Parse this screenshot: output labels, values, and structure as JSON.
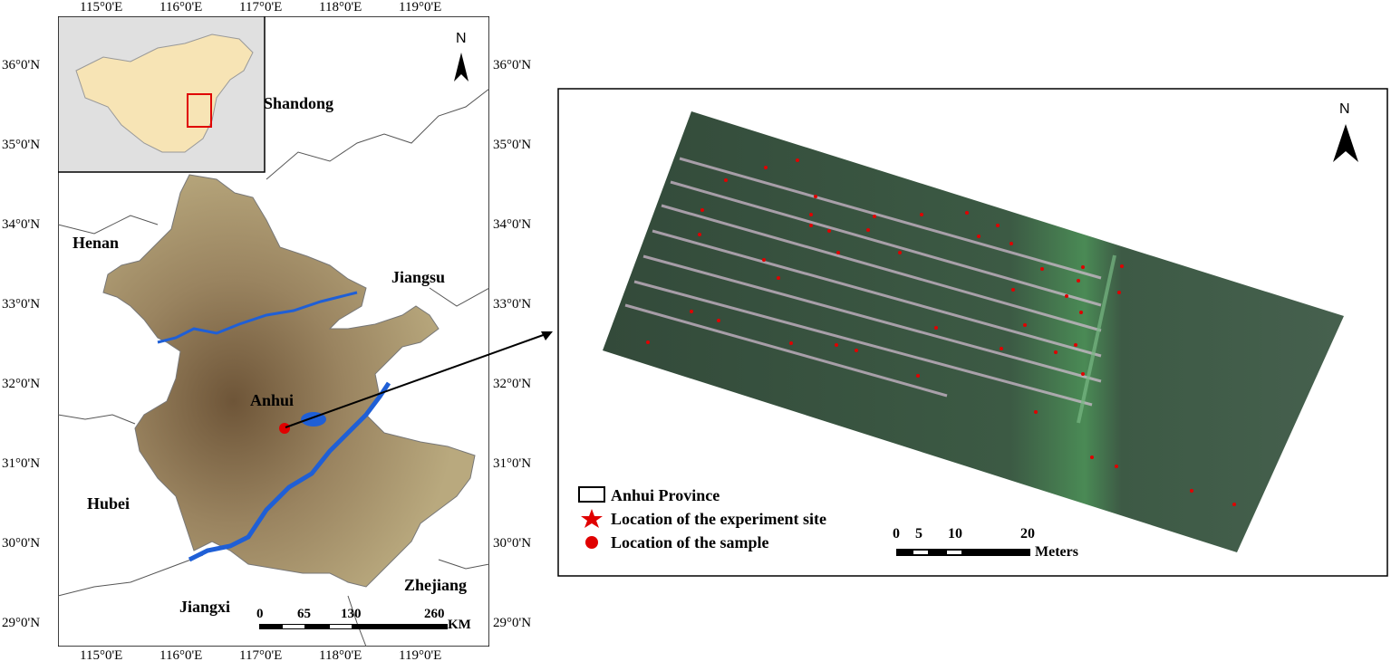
{
  "left_map": {
    "top_ticks": [
      "115°0'E",
      "116°0'E",
      "117°0'E",
      "118°0'E",
      "119°0'E"
    ],
    "bottom_ticks": [
      "115°0'E",
      "116°0'E",
      "117°0'E",
      "118°0'E",
      "119°0'E"
    ],
    "left_ticks": [
      "36°0'N",
      "35°0'N",
      "34°0'N",
      "33°0'N",
      "32°0'N",
      "31°0'N",
      "30°0'N",
      "29°0'N"
    ],
    "right_ticks": [
      "36°0'N",
      "35°0'N",
      "34°0'N",
      "33°0'N",
      "32°0'N",
      "31°0'N",
      "30°0'N",
      "29°0'N"
    ],
    "north_label": "N",
    "provinces": {
      "shandong": "Shandong",
      "henan": "Henan",
      "jiangsu": "Jiangsu",
      "anhui": "Anhui",
      "hubei": "Hubei",
      "zhejiang": "Zhejiang",
      "jiangxi": "Jiangxi"
    },
    "scale": {
      "labels": [
        "0",
        "65",
        "130",
        "260"
      ],
      "unit": "KM"
    },
    "colors": {
      "province_fill": "#b5a57a",
      "river": "#1f5fd6",
      "inset_fill": "#f7e4b5",
      "inset_bg": "#e0e0e0",
      "site": "#e00000"
    }
  },
  "right_map": {
    "north_label": "N",
    "legend": {
      "province": "Anhui Province",
      "site": "Location of the experiment site",
      "sample": "Location of the sample"
    },
    "scale": {
      "labels": [
        "0",
        "5",
        "10",
        "20"
      ],
      "unit": "Meters"
    },
    "colors": {
      "sample": "#e00000",
      "field_dark": "#2f4a34",
      "field_green": "#3c7a48"
    }
  }
}
